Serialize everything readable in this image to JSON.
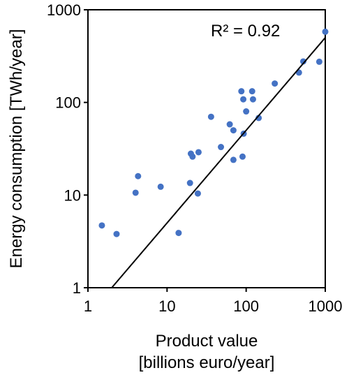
{
  "chart_data": {
    "type": "scatter",
    "title": "",
    "xlabel": "Product value",
    "xlabel_line2": "[billions euro/year]",
    "ylabel": "Energy consumption [TWh/year]",
    "xscale": "log",
    "yscale": "log",
    "xlim": [
      1,
      1000
    ],
    "ylim": [
      1,
      1000
    ],
    "xticks": [
      1,
      10,
      100,
      1000
    ],
    "yticks": [
      1,
      10,
      100,
      1000
    ],
    "xtick_labels": [
      "1",
      "10",
      "100",
      "1000"
    ],
    "ytick_labels": [
      "1",
      "10",
      "100",
      "1000"
    ],
    "grid": false,
    "legend": "none",
    "annotation": "R² = 0.92",
    "marker_color": "#4472c4",
    "line_color": "#000000",
    "points": [
      {
        "x": 1.5,
        "y": 4.7
      },
      {
        "x": 2.3,
        "y": 3.8
      },
      {
        "x": 4.0,
        "y": 10.6
      },
      {
        "x": 4.3,
        "y": 16
      },
      {
        "x": 8.3,
        "y": 12.3
      },
      {
        "x": 14,
        "y": 3.9
      },
      {
        "x": 19.5,
        "y": 13.5
      },
      {
        "x": 20,
        "y": 28
      },
      {
        "x": 21,
        "y": 26
      },
      {
        "x": 24.5,
        "y": 10.4
      },
      {
        "x": 25,
        "y": 29
      },
      {
        "x": 36,
        "y": 70
      },
      {
        "x": 48,
        "y": 33
      },
      {
        "x": 62,
        "y": 58
      },
      {
        "x": 69,
        "y": 24
      },
      {
        "x": 69,
        "y": 50
      },
      {
        "x": 87,
        "y": 132
      },
      {
        "x": 90,
        "y": 26
      },
      {
        "x": 92,
        "y": 108
      },
      {
        "x": 93,
        "y": 46
      },
      {
        "x": 100,
        "y": 80
      },
      {
        "x": 119,
        "y": 132
      },
      {
        "x": 122,
        "y": 108
      },
      {
        "x": 144,
        "y": 68
      },
      {
        "x": 230,
        "y": 160
      },
      {
        "x": 465,
        "y": 210
      },
      {
        "x": 527,
        "y": 277
      },
      {
        "x": 840,
        "y": 275
      },
      {
        "x": 1000,
        "y": 580
      }
    ],
    "trendline": [
      {
        "x": 2.0,
        "y": 1.0
      },
      {
        "x": 1000,
        "y": 500
      }
    ]
  }
}
